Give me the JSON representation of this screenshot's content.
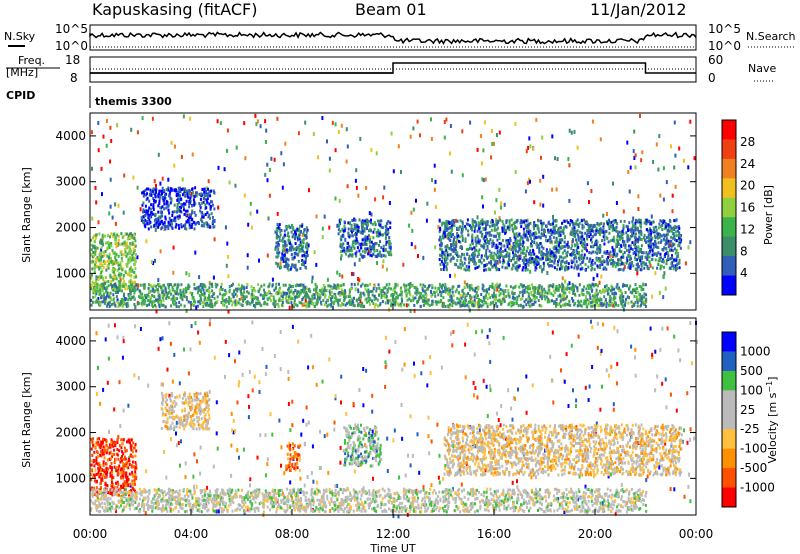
{
  "header": {
    "station": "Kapuskasing (fitACF)",
    "beam": "Beam 01",
    "date": "11/Jan/2012"
  },
  "noise_panel": {
    "left_label": "N.Sky",
    "right_label": "N.Search",
    "left_ticks": [
      "10^5",
      "10^0"
    ],
    "right_ticks": [
      "10^5",
      "10^0"
    ]
  },
  "freq_panel": {
    "left_label_1": "Freq.",
    "left_label_2": "[MHz]",
    "left_ticks": [
      "18",
      "8"
    ],
    "right_label": "Nave",
    "right_ticks": [
      "60",
      "0"
    ]
  },
  "cpid": {
    "label": "CPID",
    "value": "themis 3300"
  },
  "colors": {
    "power": [
      "#0000ff",
      "#2f5fb8",
      "#3c8d6a",
      "#3cb34a",
      "#90d040",
      "#f0c020",
      "#f08020",
      "#f04010",
      "#ff0000"
    ],
    "velocity": [
      "#ff0000",
      "#ff5000",
      "#ff9000",
      "#ffc040",
      "#bbbbbb",
      "#bbbbbb",
      "#40c040",
      "#2060c0",
      "#0000ff"
    ]
  },
  "chart_data": [
    {
      "type": "heatmap",
      "panel": "power",
      "ylabel": "Slant Range [km]",
      "y_ticks": [
        "1000",
        "2000",
        "3000",
        "4000"
      ],
      "ylim": [
        200,
        4500
      ],
      "colorbar_label": "Power [dB]",
      "colorbar_ticks": [
        "4",
        "8",
        "12",
        "16",
        "20",
        "24",
        "28"
      ],
      "regions": [
        {
          "t": [
            0,
            1.8
          ],
          "r": [
            650,
            1900
          ],
          "level": 4
        },
        {
          "t": [
            2.0,
            4.9
          ],
          "r": [
            2000,
            2900
          ],
          "level": 1
        },
        {
          "t": [
            7.3,
            8.6
          ],
          "r": [
            1100,
            2100
          ],
          "level": 2
        },
        {
          "t": [
            9.8,
            11.9
          ],
          "r": [
            1400,
            2200
          ],
          "level": 2
        },
        {
          "t": [
            13.8,
            23.4
          ],
          "r": [
            1100,
            2200
          ],
          "level": 2
        },
        {
          "t": [
            0,
            22.0
          ],
          "r": [
            300,
            800
          ],
          "level": 3
        }
      ]
    },
    {
      "type": "heatmap",
      "panel": "velocity",
      "ylabel": "Slant Range [km]",
      "y_ticks": [
        "1000",
        "2000",
        "3000",
        "4000"
      ],
      "ylim": [
        200,
        4500
      ],
      "xlabel": "Time UT",
      "x_ticks": [
        "00:00",
        "04:00",
        "08:00",
        "12:00",
        "16:00",
        "20:00",
        "00:00"
      ],
      "colorbar_label": "Velocity [m s^-1]",
      "colorbar_ticks": [
        "1000",
        "500",
        "100",
        "25",
        "-25",
        "-100",
        "-500",
        "-1000"
      ],
      "regions": [
        {
          "t": [
            0,
            1.8
          ],
          "r": [
            650,
            1900
          ],
          "level": 1
        },
        {
          "t": [
            2.8,
            4.7
          ],
          "r": [
            2100,
            2900
          ],
          "level": 4
        },
        {
          "t": [
            7.7,
            8.3
          ],
          "r": [
            1200,
            1800
          ],
          "level": 2
        },
        {
          "t": [
            10.0,
            11.5
          ],
          "r": [
            1300,
            2200
          ],
          "level": 6
        },
        {
          "t": [
            14.0,
            23.4
          ],
          "r": [
            1100,
            2200
          ],
          "level": 4
        },
        {
          "t": [
            0,
            22.0
          ],
          "r": [
            300,
            800
          ],
          "level": 5
        }
      ]
    }
  ]
}
